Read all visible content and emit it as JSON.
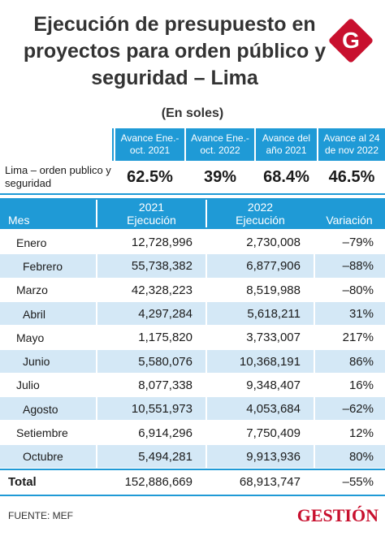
{
  "header": {
    "title": "Ejecución de presupuesto en proyectos para orden público y seguridad – Lima",
    "logo": "G",
    "subtitle": "(En soles)"
  },
  "summary": {
    "headers": [
      "Avance Ene.- oct. 2021",
      "Avance Ene.- oct. 2022",
      "Avance del año 2021",
      "Avance al 24 de nov 2022"
    ],
    "label": "Lima – orden publico y seguridad",
    "values": [
      "62.5%",
      "39%",
      "68.4%",
      "46.5%"
    ]
  },
  "table": {
    "columns": [
      [
        "Mes"
      ],
      [
        "2021",
        "Ejecución"
      ],
      [
        "2022",
        "Ejecución"
      ],
      [
        "Variación"
      ]
    ],
    "rows": [
      [
        "Enero",
        "12,728,996",
        "2,730,008",
        "–79%"
      ],
      [
        "Febrero",
        "55,738,382",
        "6,877,906",
        "–88%"
      ],
      [
        "Marzo",
        "42,328,223",
        "8,519,988",
        "–80%"
      ],
      [
        "Abril",
        "4,297,284",
        "5,618,211",
        "31%"
      ],
      [
        "Mayo",
        "1,175,820",
        "3,733,007",
        "217%"
      ],
      [
        "Junio",
        "5,580,076",
        "10,368,191",
        "86%"
      ],
      [
        "Julio",
        "8,077,338",
        "9,348,407",
        "16%"
      ],
      [
        "Agosto",
        "10,551,973",
        "4,053,684",
        "–62%"
      ],
      [
        "Setiembre",
        "6,914,296",
        "7,750,409",
        "12%"
      ],
      [
        "Octubre",
        "5,494,281",
        "9,913,936",
        "80%"
      ]
    ],
    "total": [
      "Total",
      "152,886,669",
      "68,913,747",
      "–55%"
    ]
  },
  "footer": {
    "source": "FUENTE: MEF",
    "brand": "GESTIÓN"
  }
}
